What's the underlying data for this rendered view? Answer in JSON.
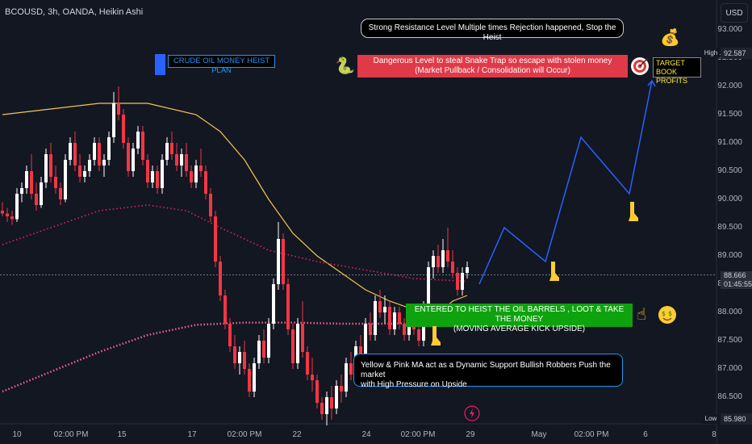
{
  "header": {
    "symbol_line": "BCOUSD, 3h, OANDA, Heikin Ashi"
  },
  "currency_button": "USD",
  "price_axis": {
    "ticks": [
      "93.000",
      "92.500",
      "92.000",
      "91.500",
      "91.000",
      "90.500",
      "90.000",
      "89.500",
      "89.000",
      "88.500",
      "88.000",
      "87.500",
      "87.000",
      "86.500"
    ],
    "high_label": "High",
    "high_value": "92.587",
    "low_label": "Low",
    "low_value": "85.980",
    "current_price": "88.666",
    "countdown": "01:45:55"
  },
  "time_axis": {
    "ticks": [
      "10",
      "02:00 PM",
      "15",
      "17",
      "02:00 PM",
      "22",
      "24",
      "02:00 PM",
      "29",
      "May",
      "02:00 PM",
      "6",
      "8"
    ]
  },
  "annotations": {
    "resistance": "Strong Resistance Level Multiple times Rejection happened, Stop the Heist",
    "snake_line1": "Dangerous Level to steal Snake Trap so escape with stolen money",
    "snake_line2": "(Market Pullback / Consolidation will Occur)",
    "plan": "CRUDE OIL MONEY HEIST PLAN",
    "target_line1": "TARGET",
    "target_line2": "BOOK PROFITS",
    "entry_line1": "ENTERED TO HEIST THE OIL BARRELS , LOOT & TAKE THE MONEY",
    "entry_line2": "(MOVING AVERAGE KICK UPSIDE)",
    "support_line1": "Yellow & Pink MA act as a Dynamic Support Bullish Robbers Push the market",
    "support_line2": "with High Pressure on Upside"
  },
  "icons": {
    "snake": "snake-icon",
    "moneybag": "money-bag-icon",
    "target": "bullseye-icon",
    "leg": "leg-icon",
    "pointing": "pointing-up-icon",
    "money_face": "money-face-icon",
    "lightning": "lightning-icon"
  },
  "colors": {
    "up": "#ffffff",
    "down": "#f23645",
    "yellow_ma": "#f5c451",
    "pink_ma": "#e91e63",
    "projection": "#2962ff"
  },
  "chart_data": {
    "type": "candlestick",
    "title": "BCOUSD, 3h, OANDA, Heikin Ashi",
    "ylim": [
      85.9,
      93.2
    ],
    "candles": [
      [
        89.8,
        89.95,
        89.7,
        89.75
      ],
      [
        89.75,
        89.85,
        89.6,
        89.7
      ],
      [
        89.7,
        89.8,
        89.55,
        89.65
      ],
      [
        89.65,
        90.2,
        89.6,
        90.1
      ],
      [
        90.1,
        90.3,
        89.95,
        90.2
      ],
      [
        90.2,
        90.6,
        90.1,
        90.5
      ],
      [
        90.5,
        90.8,
        90.0,
        90.1
      ],
      [
        90.1,
        90.3,
        89.8,
        89.9
      ],
      [
        89.9,
        90.4,
        89.85,
        90.3
      ],
      [
        90.3,
        90.9,
        90.2,
        90.8
      ],
      [
        90.8,
        91.0,
        90.3,
        90.4
      ],
      [
        90.4,
        90.6,
        90.1,
        90.2
      ],
      [
        90.2,
        90.3,
        89.9,
        90.0
      ],
      [
        90.0,
        90.8,
        89.95,
        90.7
      ],
      [
        90.7,
        91.1,
        90.6,
        91.0
      ],
      [
        91.0,
        91.2,
        90.5,
        90.6
      ],
      [
        90.6,
        90.8,
        90.3,
        90.4
      ],
      [
        90.4,
        90.6,
        90.3,
        90.5
      ],
      [
        90.5,
        90.8,
        90.4,
        90.7
      ],
      [
        90.7,
        91.1,
        90.6,
        91.0
      ],
      [
        91.0,
        91.1,
        90.5,
        90.6
      ],
      [
        90.6,
        90.8,
        90.4,
        90.7
      ],
      [
        90.7,
        91.2,
        90.6,
        91.1
      ],
      [
        91.1,
        91.9,
        91.0,
        91.7
      ],
      [
        91.7,
        92.0,
        91.4,
        91.5
      ],
      [
        91.5,
        91.6,
        90.9,
        91.0
      ],
      [
        91.0,
        91.1,
        90.4,
        90.5
      ],
      [
        90.5,
        91.0,
        90.4,
        90.9
      ],
      [
        90.9,
        91.3,
        90.8,
        91.2
      ],
      [
        91.2,
        91.3,
        90.6,
        90.7
      ],
      [
        90.7,
        90.8,
        90.2,
        90.3
      ],
      [
        90.3,
        90.6,
        90.2,
        90.5
      ],
      [
        90.5,
        90.6,
        90.1,
        90.2
      ],
      [
        90.2,
        90.8,
        90.1,
        90.7
      ],
      [
        90.7,
        91.1,
        90.6,
        91.0
      ],
      [
        91.0,
        91.2,
        90.7,
        90.8
      ],
      [
        90.8,
        91.0,
        90.5,
        90.6
      ],
      [
        90.6,
        90.9,
        90.4,
        90.8
      ],
      [
        90.8,
        91.0,
        90.4,
        90.5
      ],
      [
        90.5,
        90.6,
        90.2,
        90.3
      ],
      [
        90.3,
        90.7,
        90.2,
        90.6
      ],
      [
        90.6,
        90.9,
        90.4,
        90.5
      ],
      [
        90.5,
        90.6,
        90.0,
        90.1
      ],
      [
        90.1,
        90.2,
        89.6,
        89.7
      ],
      [
        89.7,
        89.8,
        88.8,
        88.9
      ],
      [
        88.9,
        89.0,
        88.2,
        88.3
      ],
      [
        88.3,
        88.4,
        87.7,
        87.8
      ],
      [
        87.8,
        87.9,
        87.3,
        87.4
      ],
      [
        87.4,
        87.6,
        87.0,
        87.1
      ],
      [
        87.1,
        87.4,
        86.9,
        87.3
      ],
      [
        87.3,
        87.5,
        86.9,
        87.0
      ],
      [
        87.0,
        87.1,
        86.5,
        86.6
      ],
      [
        86.6,
        87.2,
        86.5,
        87.1
      ],
      [
        87.1,
        87.6,
        87.0,
        87.5
      ],
      [
        87.5,
        87.7,
        87.1,
        87.2
      ],
      [
        87.2,
        87.9,
        87.1,
        87.8
      ],
      [
        87.8,
        88.6,
        87.7,
        88.5
      ],
      [
        88.5,
        89.6,
        88.4,
        89.3
      ],
      [
        89.3,
        89.4,
        88.4,
        88.5
      ],
      [
        88.5,
        88.6,
        87.6,
        87.7
      ],
      [
        87.7,
        87.8,
        87.0,
        87.1
      ],
      [
        87.1,
        87.9,
        87.0,
        87.8
      ],
      [
        87.8,
        88.2,
        87.2,
        87.3
      ],
      [
        87.3,
        87.4,
        86.8,
        86.9
      ],
      [
        86.9,
        87.2,
        86.6,
        86.8
      ],
      [
        86.8,
        86.9,
        86.3,
        86.4
      ],
      [
        86.4,
        86.5,
        86.1,
        86.2
      ],
      [
        86.2,
        86.6,
        86.0,
        86.5
      ],
      [
        86.5,
        86.7,
        86.1,
        86.3
      ],
      [
        86.3,
        86.8,
        86.2,
        86.7
      ],
      [
        86.7,
        86.9,
        86.4,
        86.6
      ],
      [
        86.6,
        87.2,
        86.5,
        87.1
      ],
      [
        87.1,
        87.3,
        86.8,
        86.9
      ],
      [
        86.9,
        87.5,
        86.8,
        87.4
      ],
      [
        87.4,
        87.6,
        87.0,
        87.1
      ],
      [
        87.1,
        87.9,
        87.0,
        87.8
      ],
      [
        87.8,
        88.0,
        87.5,
        87.6
      ],
      [
        87.6,
        88.3,
        87.5,
        88.2
      ],
      [
        88.2,
        88.4,
        87.9,
        88.0
      ],
      [
        88.0,
        88.3,
        87.8,
        88.1
      ],
      [
        88.1,
        88.2,
        87.6,
        87.7
      ],
      [
        87.7,
        88.1,
        87.6,
        88.0
      ],
      [
        88.0,
        88.1,
        87.7,
        87.8
      ],
      [
        87.8,
        87.9,
        87.5,
        87.6
      ],
      [
        87.6,
        87.9,
        87.5,
        87.8
      ],
      [
        87.8,
        88.0,
        87.6,
        87.7
      ],
      [
        87.7,
        87.8,
        87.4,
        87.5
      ],
      [
        87.5,
        88.2,
        87.4,
        88.1
      ],
      [
        88.1,
        88.9,
        88.0,
        88.8
      ],
      [
        88.8,
        89.1,
        88.6,
        89.0
      ],
      [
        89.0,
        89.2,
        88.7,
        88.8
      ],
      [
        88.8,
        89.3,
        88.7,
        89.1
      ],
      [
        89.1,
        89.5,
        88.8,
        88.9
      ],
      [
        88.9,
        89.1,
        88.6,
        88.7
      ],
      [
        88.7,
        88.8,
        88.3,
        88.4
      ],
      [
        88.4,
        88.8,
        88.3,
        88.7
      ],
      [
        88.7,
        88.9,
        88.6,
        88.8
      ]
    ],
    "ma_yellow": [
      [
        0,
        91.5
      ],
      [
        10,
        91.6
      ],
      [
        20,
        91.7
      ],
      [
        30,
        91.7
      ],
      [
        40,
        91.5
      ],
      [
        45,
        91.2
      ],
      [
        50,
        90.7
      ],
      [
        55,
        90.0
      ],
      [
        60,
        89.4
      ],
      [
        65,
        89.0
      ],
      [
        70,
        88.7
      ],
      [
        75,
        88.4
      ],
      [
        80,
        88.2
      ],
      [
        85,
        88.05
      ],
      [
        90,
        87.98
      ],
      [
        93,
        88.2
      ],
      [
        96,
        88.3
      ]
    ],
    "ma_pink": [
      [
        0,
        89.2
      ],
      [
        10,
        89.5
      ],
      [
        20,
        89.8
      ],
      [
        30,
        89.9
      ],
      [
        38,
        89.8
      ],
      [
        45,
        89.5
      ],
      [
        55,
        89.1
      ],
      [
        65,
        88.9
      ],
      [
        75,
        88.75
      ],
      [
        85,
        88.6
      ],
      [
        96,
        88.55
      ]
    ],
    "ma_pink_lower": [
      [
        0,
        86.6
      ],
      [
        10,
        86.95
      ],
      [
        20,
        87.3
      ],
      [
        30,
        87.6
      ],
      [
        40,
        87.78
      ],
      [
        50,
        87.82
      ],
      [
        60,
        87.82
      ],
      [
        70,
        87.8
      ],
      [
        80,
        87.8
      ],
      [
        90,
        87.82
      ],
      [
        96,
        87.9
      ]
    ],
    "projection_path": [
      [
        88.5,
        0
      ],
      [
        89.5,
        1
      ],
      [
        88.9,
        2
      ],
      [
        91.1,
        3
      ],
      [
        90.1,
        4
      ],
      [
        92.1,
        5
      ]
    ]
  }
}
